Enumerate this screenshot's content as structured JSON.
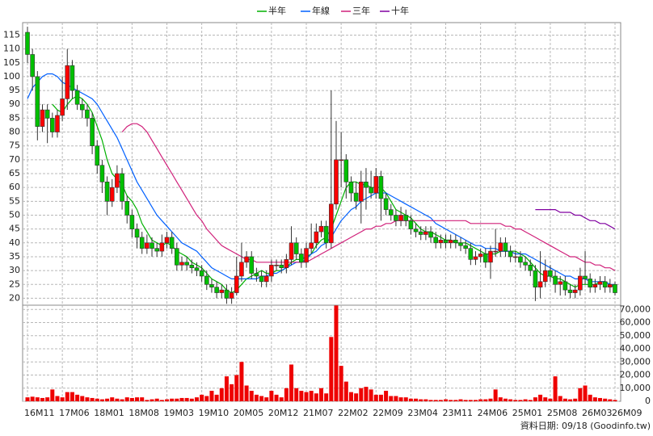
{
  "chart_data": {
    "type": "candlestick",
    "legend": [
      "半年",
      "年線",
      "三年",
      "十年"
    ],
    "source": "資料日期: 09/18 (Goodinfo.tw)",
    "up_color": "#ff0000",
    "down_color": "#00c000",
    "grid": true,
    "ylim": [
      17.5,
      119.5
    ],
    "yticks": [
      20,
      25,
      30,
      35,
      40,
      45,
      50,
      55,
      60,
      65,
      70,
      75,
      80,
      85,
      90,
      95,
      100,
      105,
      110,
      115
    ],
    "categories": [
      "16M11",
      null,
      null,
      null,
      null,
      null,
      null,
      "17M06",
      null,
      null,
      null,
      null,
      null,
      null,
      "18M01",
      null,
      null,
      null,
      null,
      null,
      null,
      "18M08",
      null,
      null,
      null,
      null,
      null,
      null,
      "19M03",
      null,
      null,
      null,
      null,
      null,
      null,
      "19M10",
      null,
      null,
      null,
      null,
      null,
      null,
      "20M05",
      null,
      null,
      null,
      null,
      null,
      null,
      "20M12",
      null,
      null,
      null,
      null,
      null,
      null,
      "21M07",
      null,
      null,
      null,
      null,
      null,
      null,
      "22M02",
      null,
      null,
      null,
      null,
      null,
      null,
      "22M09",
      null,
      null,
      null,
      null,
      null,
      null,
      "23M04",
      null,
      null,
      null,
      null,
      null,
      null,
      "23M11",
      null,
      null,
      null,
      null,
      null,
      null,
      "24M06",
      null,
      null,
      null,
      null,
      null,
      null,
      "25M01",
      null,
      null,
      null,
      null,
      null,
      null,
      "25M08",
      null,
      null,
      null,
      null,
      null,
      null,
      "26M03",
      null,
      null,
      null,
      null,
      null,
      "26M09"
    ],
    "ohlc": [
      [
        116,
        118,
        105,
        108
      ],
      [
        108,
        110,
        95,
        100
      ],
      [
        100,
        102,
        77,
        82
      ],
      [
        82,
        90,
        80,
        88
      ],
      [
        88,
        90,
        76,
        85
      ],
      [
        85,
        87,
        78,
        80
      ],
      [
        80,
        88,
        78,
        86
      ],
      [
        86,
        100,
        84,
        92
      ],
      [
        92,
        110,
        88,
        104
      ],
      [
        104,
        106,
        92,
        95
      ],
      [
        95,
        97,
        88,
        90
      ],
      [
        90,
        92,
        85,
        88
      ],
      [
        88,
        90,
        82,
        85
      ],
      [
        85,
        87,
        72,
        75
      ],
      [
        75,
        77,
        65,
        68
      ],
      [
        68,
        70,
        58,
        62
      ],
      [
        62,
        64,
        50,
        55
      ],
      [
        55,
        63,
        53,
        60
      ],
      [
        60,
        68,
        58,
        65
      ],
      [
        65,
        67,
        52,
        55
      ],
      [
        55,
        57,
        47,
        50
      ],
      [
        50,
        52,
        42,
        45
      ],
      [
        45,
        47,
        38,
        42
      ],
      [
        42,
        44,
        36,
        38
      ],
      [
        38,
        43,
        36,
        40
      ],
      [
        40,
        42,
        35,
        38
      ],
      [
        38,
        40,
        35,
        37
      ],
      [
        37,
        43,
        35,
        40
      ],
      [
        40,
        44,
        38,
        42
      ],
      [
        42,
        44,
        36,
        38
      ],
      [
        38,
        40,
        30,
        32
      ],
      [
        32,
        35,
        30,
        33
      ],
      [
        33,
        35,
        30,
        32
      ],
      [
        32,
        34,
        29,
        31
      ],
      [
        31,
        33,
        28,
        30
      ],
      [
        30,
        32,
        26,
        28
      ],
      [
        28,
        30,
        23,
        25
      ],
      [
        25,
        27,
        22,
        24
      ],
      [
        24,
        26,
        20,
        22
      ],
      [
        22,
        25,
        20,
        23
      ],
      [
        23,
        25,
        18,
        20
      ],
      [
        20,
        24,
        18,
        22
      ],
      [
        22,
        35,
        21,
        28
      ],
      [
        28,
        40,
        26,
        33
      ],
      [
        33,
        37,
        31,
        35
      ],
      [
        35,
        37,
        27,
        29
      ],
      [
        29,
        31,
        26,
        28
      ],
      [
        28,
        30,
        24,
        26
      ],
      [
        26,
        30,
        24,
        28
      ],
      [
        28,
        34,
        26,
        32
      ],
      [
        32,
        34,
        30,
        32
      ],
      [
        32,
        34,
        29,
        31
      ],
      [
        31,
        36,
        29,
        34
      ],
      [
        34,
        46,
        32,
        40
      ],
      [
        40,
        42,
        34,
        36
      ],
      [
        36,
        38,
        31,
        33
      ],
      [
        33,
        40,
        31,
        38
      ],
      [
        38,
        47,
        36,
        40
      ],
      [
        40,
        47,
        38,
        44
      ],
      [
        44,
        48,
        42,
        46
      ],
      [
        46,
        48,
        38,
        40
      ],
      [
        40,
        95,
        38,
        54
      ],
      [
        54,
        84,
        52,
        70
      ],
      [
        70,
        80,
        60,
        70
      ],
      [
        70,
        72,
        56,
        62
      ],
      [
        62,
        64,
        55,
        58
      ],
      [
        58,
        62,
        52,
        55
      ],
      [
        55,
        66,
        47,
        62
      ],
      [
        62,
        67,
        52,
        60
      ],
      [
        60,
        66,
        56,
        58
      ],
      [
        58,
        67,
        56,
        64
      ],
      [
        64,
        66,
        48,
        56
      ],
      [
        56,
        58,
        50,
        52
      ],
      [
        52,
        54,
        48,
        50
      ],
      [
        50,
        52,
        46,
        48
      ],
      [
        48,
        53,
        46,
        50
      ],
      [
        50,
        52,
        46,
        48
      ],
      [
        48,
        50,
        43,
        45
      ],
      [
        45,
        47,
        42,
        44
      ],
      [
        44,
        46,
        41,
        43
      ],
      [
        43,
        46,
        41,
        44
      ],
      [
        44,
        46,
        40,
        42
      ],
      [
        42,
        44,
        38,
        40
      ],
      [
        40,
        43,
        38,
        41
      ],
      [
        41,
        43,
        38,
        40
      ],
      [
        40,
        43,
        38,
        41
      ],
      [
        41,
        43,
        38,
        40
      ],
      [
        40,
        42,
        37,
        39
      ],
      [
        39,
        41,
        36,
        38
      ],
      [
        38,
        40,
        32,
        34
      ],
      [
        34,
        37,
        32,
        35
      ],
      [
        35,
        38,
        33,
        36
      ],
      [
        36,
        38,
        31,
        33
      ],
      [
        33,
        39,
        27,
        37
      ],
      [
        37,
        45,
        35,
        37
      ],
      [
        37,
        42,
        35,
        40
      ],
      [
        40,
        42,
        35,
        37
      ],
      [
        37,
        39,
        33,
        35
      ],
      [
        35,
        37,
        33,
        35
      ],
      [
        35,
        37,
        31,
        33
      ],
      [
        33,
        35,
        30,
        32
      ],
      [
        32,
        34,
        28,
        30
      ],
      [
        30,
        32,
        19,
        24
      ],
      [
        24,
        37,
        20,
        26
      ],
      [
        26,
        34,
        24,
        30
      ],
      [
        30,
        32,
        26,
        28
      ],
      [
        28,
        30,
        22,
        25
      ],
      [
        25,
        28,
        21,
        26
      ],
      [
        26,
        28,
        21,
        23
      ],
      [
        23,
        25,
        20,
        22
      ],
      [
        22,
        25,
        20,
        23
      ],
      [
        23,
        31,
        21,
        28
      ],
      [
        28,
        37,
        25,
        27
      ],
      [
        27,
        29,
        22,
        24
      ],
      [
        24,
        27,
        22,
        25
      ],
      [
        25,
        28,
        23,
        26
      ],
      [
        26,
        28,
        22,
        24
      ],
      [
        24,
        27,
        22,
        25
      ],
      [
        25,
        26,
        21,
        22
      ]
    ],
    "series": [
      {
        "name": "半年",
        "color": "#00b000",
        "values": [
          null,
          null,
          null,
          null,
          null,
          90,
          88,
          87,
          90,
          92,
          93,
          92,
          90,
          87,
          82,
          77,
          70,
          65,
          63,
          61,
          57,
          55,
          52,
          47,
          44,
          41,
          40,
          39,
          40,
          39,
          37,
          36,
          35,
          33,
          32,
          31,
          29,
          27,
          26,
          25,
          23,
          22,
          23,
          25,
          27,
          28,
          29,
          30,
          29,
          29,
          30,
          30,
          31,
          33,
          34,
          34,
          35,
          36,
          39,
          41,
          42,
          45,
          50,
          55,
          60,
          62,
          62,
          61,
          61,
          60,
          60,
          60,
          58,
          55,
          52,
          51,
          50,
          49,
          47,
          45,
          44,
          44,
          43,
          42,
          41,
          41,
          40,
          40,
          40,
          39,
          38,
          37,
          36,
          36,
          36,
          37,
          37,
          37,
          37,
          36,
          35,
          33,
          31,
          29,
          28,
          28,
          27,
          27,
          26,
          25,
          24,
          25,
          25,
          25,
          25,
          26,
          26,
          25,
          24
        ]
      },
      {
        "name": "年線",
        "color": "#0060ff",
        "values": [
          92,
          96,
          98,
          100,
          101,
          101,
          100,
          98,
          97,
          96,
          95,
          94,
          93,
          92,
          90,
          87,
          84,
          81,
          78,
          74,
          70,
          66,
          62,
          59,
          56,
          53,
          50,
          48,
          46,
          44,
          42,
          40,
          39,
          38,
          37,
          35,
          33,
          31,
          30,
          29,
          28,
          27,
          27,
          27,
          27,
          27,
          27,
          28,
          28,
          29,
          29,
          30,
          31,
          32,
          33,
          33,
          34,
          36,
          37,
          39,
          40,
          42,
          45,
          48,
          50,
          52,
          53,
          55,
          56,
          57,
          58,
          58,
          58,
          57,
          56,
          55,
          54,
          53,
          52,
          51,
          50,
          49,
          47,
          46,
          45,
          44,
          43,
          42,
          41,
          40,
          39,
          39,
          38,
          38,
          38,
          37,
          37,
          37,
          36,
          36,
          36,
          35,
          34,
          33,
          32,
          31,
          30,
          29,
          28,
          28,
          27,
          27,
          27,
          26,
          26,
          26,
          26,
          25,
          25
        ]
      },
      {
        "name": "三年",
        "color": "#d0207a",
        "values": [
          null,
          null,
          null,
          null,
          null,
          null,
          null,
          null,
          null,
          null,
          null,
          null,
          null,
          null,
          null,
          null,
          null,
          null,
          null,
          80,
          82,
          83,
          83,
          82,
          80,
          77,
          74,
          71,
          68,
          65,
          62,
          59,
          56,
          53,
          50,
          48,
          45,
          43,
          41,
          39,
          38,
          37,
          36,
          35,
          34,
          34,
          33,
          33,
          33,
          33,
          33,
          33,
          33,
          33,
          33,
          33,
          33,
          34,
          35,
          36,
          37,
          38,
          39,
          40,
          41,
          42,
          43,
          44,
          45,
          45,
          46,
          46,
          47,
          47,
          48,
          48,
          48,
          48,
          48,
          48,
          48,
          48,
          48,
          48,
          48,
          48,
          48,
          48,
          48,
          47,
          47,
          47,
          47,
          47,
          47,
          47,
          46,
          46,
          45,
          45,
          44,
          43,
          42,
          41,
          40,
          39,
          38,
          37,
          36,
          35,
          35,
          34,
          33,
          33,
          32,
          32,
          31,
          31,
          30
        ]
      },
      {
        "name": "十年",
        "color": "#8000a0",
        "values": [
          null,
          null,
          null,
          null,
          null,
          null,
          null,
          null,
          null,
          null,
          null,
          null,
          null,
          null,
          null,
          null,
          null,
          null,
          null,
          null,
          null,
          null,
          null,
          null,
          null,
          null,
          null,
          null,
          null,
          null,
          null,
          null,
          null,
          null,
          null,
          null,
          null,
          null,
          null,
          null,
          null,
          null,
          null,
          null,
          null,
          null,
          null,
          null,
          null,
          null,
          null,
          null,
          null,
          null,
          null,
          null,
          null,
          null,
          null,
          null,
          null,
          null,
          null,
          null,
          null,
          null,
          null,
          null,
          null,
          null,
          null,
          null,
          null,
          null,
          null,
          null,
          null,
          null,
          null,
          null,
          null,
          null,
          null,
          null,
          null,
          null,
          null,
          null,
          null,
          null,
          null,
          null,
          null,
          null,
          null,
          null,
          null,
          null,
          null,
          null,
          null,
          null,
          52,
          52,
          52,
          52,
          52,
          51,
          51,
          51,
          50,
          50,
          49,
          48,
          48,
          47,
          47,
          46,
          45
        ]
      }
    ],
    "volume": {
      "color": "#ee0000",
      "ylim": [
        0,
        72000
      ],
      "yticks": [
        0,
        {
          "value": 10000,
          "label": "10,000"
        },
        {
          "value": 20000,
          "label": "20,000"
        },
        {
          "value": 30000,
          "label": "30,000"
        },
        {
          "value": 40000,
          "label": "40,000"
        },
        {
          "value": 50000,
          "label": "50,000"
        },
        {
          "value": 60000,
          "label": "60,000"
        },
        {
          "value": 70000,
          "label": "70,000"
        }
      ],
      "values": [
        3000,
        3500,
        3000,
        2500,
        3000,
        9000,
        4000,
        3000,
        7000,
        7000,
        5000,
        4000,
        3000,
        2500,
        2000,
        1500,
        2000,
        3000,
        2000,
        1500,
        3000,
        2500,
        3000,
        3000,
        1000,
        1500,
        2000,
        1000,
        1500,
        2000,
        2000,
        2500,
        2500,
        2000,
        3000,
        5000,
        4000,
        8000,
        5000,
        10000,
        19000,
        13000,
        20000,
        30000,
        12000,
        8000,
        5000,
        4000,
        3000,
        8000,
        5000,
        3000,
        10000,
        28000,
        10000,
        8000,
        7000,
        8000,
        6000,
        10000,
        6000,
        49000,
        73000,
        27000,
        15000,
        7000,
        6000,
        10000,
        11000,
        9000,
        5000,
        5000,
        8000,
        4000,
        4000,
        3000,
        3000,
        2000,
        2000,
        1500,
        1500,
        1000,
        1000,
        1000,
        1500,
        1000,
        1000,
        1500,
        1000,
        1000,
        1000,
        1500,
        1500,
        2000,
        9000,
        3000,
        2000,
        1500,
        1000,
        1000,
        1500,
        1000,
        3000,
        5000,
        3000,
        2000,
        19000,
        4000,
        2000,
        1500,
        2000,
        10000,
        12000,
        5000,
        3000,
        2500,
        2000,
        1500,
        1000
      ]
    }
  }
}
